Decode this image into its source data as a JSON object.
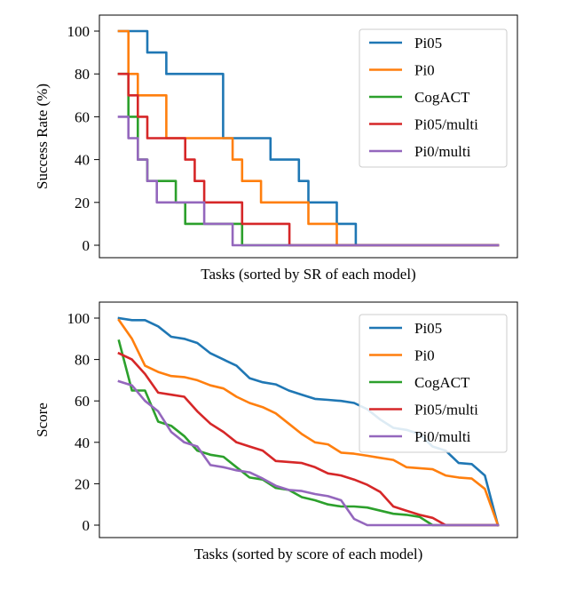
{
  "chart_data": [
    {
      "type": "line",
      "xlabel": "Tasks (sorted by SR of each model)",
      "ylabel": "Success Rate (%)",
      "ylim": [
        0,
        100
      ],
      "yticks": [
        0,
        20,
        40,
        60,
        80,
        100
      ],
      "x_tick_labels": "none",
      "step": true,
      "grid": false,
      "legend_position": "top-right",
      "series": [
        {
          "name": "Pi05",
          "color": "#1f77b4",
          "values": [
            100,
            100,
            100,
            90,
            90,
            80,
            80,
            80,
            80,
            80,
            80,
            50,
            50,
            50,
            50,
            50,
            40,
            40,
            40,
            30,
            20,
            20,
            20,
            10,
            10,
            0,
            0,
            0,
            0,
            0,
            0,
            0,
            0,
            0,
            0,
            0,
            0,
            0,
            0,
            0,
            0
          ]
        },
        {
          "name": "Pi0",
          "color": "#ff7f0e",
          "values": [
            100,
            80,
            70,
            70,
            70,
            50,
            50,
            50,
            50,
            50,
            50,
            50,
            40,
            30,
            30,
            20,
            20,
            20,
            20,
            20,
            10,
            10,
            10,
            0,
            0,
            0,
            0,
            0,
            0,
            0,
            0,
            0,
            0,
            0,
            0,
            0,
            0,
            0,
            0,
            0,
            0
          ]
        },
        {
          "name": "CogACT",
          "color": "#2ca02c",
          "values": [
            80,
            60,
            40,
            30,
            30,
            30,
            20,
            10,
            10,
            10,
            10,
            10,
            10,
            0,
            0,
            0,
            0,
            0,
            0,
            0,
            0,
            0,
            0,
            0,
            0,
            0,
            0,
            0,
            0,
            0,
            0,
            0,
            0,
            0,
            0,
            0,
            0,
            0,
            0,
            0,
            0
          ]
        },
        {
          "name": "Pi05/multi",
          "color": "#d62728",
          "values": [
            80,
            70,
            60,
            50,
            50,
            50,
            50,
            40,
            30,
            20,
            20,
            20,
            20,
            10,
            10,
            10,
            10,
            10,
            0,
            0,
            0,
            0,
            0,
            0,
            0,
            0,
            0,
            0,
            0,
            0,
            0,
            0,
            0,
            0,
            0,
            0,
            0,
            0,
            0,
            0,
            0
          ]
        },
        {
          "name": "Pi0/multi",
          "color": "#9467bd",
          "values": [
            60,
            50,
            40,
            30,
            20,
            20,
            20,
            20,
            20,
            10,
            10,
            10,
            0,
            0,
            0,
            0,
            0,
            0,
            0,
            0,
            0,
            0,
            0,
            0,
            0,
            0,
            0,
            0,
            0,
            0,
            0,
            0,
            0,
            0,
            0,
            0,
            0,
            0,
            0,
            0,
            0
          ]
        }
      ]
    },
    {
      "type": "line",
      "xlabel": "Tasks (sorted by score of each model)",
      "ylabel": "Score",
      "ylim": [
        0,
        100
      ],
      "yticks": [
        0,
        20,
        40,
        60,
        80,
        100
      ],
      "x_tick_labels": "none",
      "step": false,
      "grid": false,
      "legend_position": "top-right",
      "series": [
        {
          "name": "Pi05",
          "color": "#1f77b4",
          "values": [
            100,
            99,
            99,
            96,
            91,
            90,
            88,
            83,
            80,
            77,
            71,
            69,
            68,
            65,
            63,
            61,
            60.5,
            60,
            59,
            56,
            51,
            47,
            46,
            44,
            38,
            36,
            30,
            29.5,
            24,
            0
          ]
        },
        {
          "name": "Pi0",
          "color": "#ff7f0e",
          "values": [
            99,
            90,
            77,
            74,
            72,
            71.5,
            70,
            67.5,
            66,
            62,
            59,
            57,
            54,
            49,
            44,
            40,
            39,
            35,
            34.5,
            33.5,
            32.5,
            31.5,
            28,
            27.5,
            27,
            24,
            23,
            22.5,
            17.5,
            0
          ]
        },
        {
          "name": "CogACT",
          "color": "#2ca02c",
          "values": [
            89,
            65,
            65,
            50,
            48,
            43,
            36,
            34,
            33,
            28,
            23,
            22,
            18,
            17,
            13.5,
            12,
            10,
            9,
            9,
            8.5,
            7,
            5.5,
            5,
            4,
            0,
            0,
            0,
            0,
            0,
            0
          ]
        },
        {
          "name": "Pi05/multi",
          "color": "#d62728",
          "values": [
            83,
            80,
            73,
            64,
            63,
            62,
            55,
            49,
            45,
            40,
            38,
            36,
            31,
            30.5,
            30,
            28,
            25,
            24,
            22,
            19.5,
            16,
            9,
            7,
            5,
            3.5,
            0,
            0,
            0,
            0,
            0
          ]
        },
        {
          "name": "Pi0/multi",
          "color": "#9467bd",
          "values": [
            69.5,
            67.5,
            60,
            55,
            45,
            40,
            38,
            29,
            28,
            26.5,
            25.5,
            22.5,
            19,
            17,
            16.5,
            15,
            14,
            12,
            3,
            0,
            0,
            0,
            0,
            0,
            0,
            0,
            0,
            0,
            0,
            0
          ]
        }
      ]
    }
  ]
}
